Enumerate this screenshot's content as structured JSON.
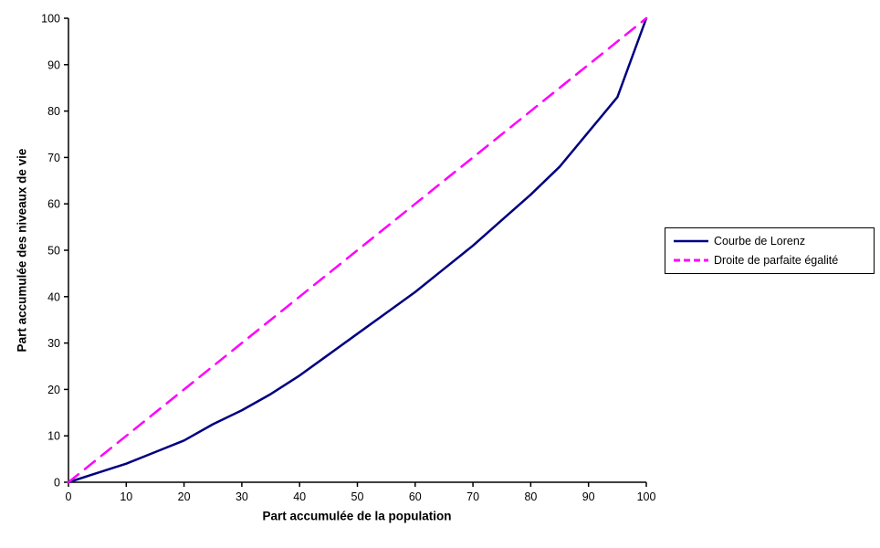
{
  "chart_data": {
    "type": "line",
    "title": "",
    "xlabel": "Part accumulée de la population",
    "ylabel": "Part accumulée des niveaux de vie",
    "xlim": [
      0,
      100
    ],
    "ylim": [
      0,
      100
    ],
    "xticks": [
      0,
      10,
      20,
      30,
      40,
      50,
      60,
      70,
      80,
      90,
      100
    ],
    "yticks": [
      0,
      10,
      20,
      30,
      40,
      50,
      60,
      70,
      80,
      90,
      100
    ],
    "grid": false,
    "legend_position": "right",
    "axis_color": "#000000",
    "background_color": "#ffffff",
    "series": [
      {
        "name": "Courbe de Lorenz",
        "color": "#000080",
        "style": "solid",
        "x": [
          0,
          5,
          10,
          15,
          20,
          25,
          30,
          35,
          40,
          45,
          50,
          55,
          60,
          65,
          70,
          75,
          80,
          85,
          90,
          95,
          100
        ],
        "y": [
          0,
          2,
          4,
          6.5,
          9,
          12.5,
          15.5,
          19,
          23,
          27.5,
          32,
          36.5,
          41,
          46,
          51,
          56.5,
          62,
          68,
          75.5,
          83,
          100
        ]
      },
      {
        "name": "Droite de parfaite égalité",
        "color": "#FF00FF",
        "style": "dashed",
        "x": [
          0,
          100
        ],
        "y": [
          0,
          100
        ]
      }
    ]
  }
}
